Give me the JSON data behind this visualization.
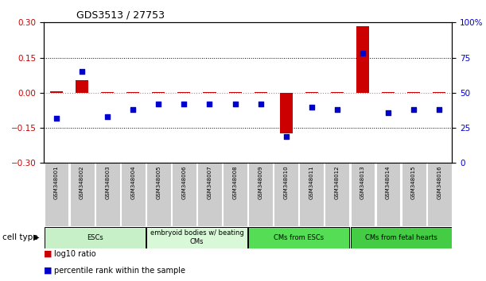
{
  "title": "GDS3513 / 27753",
  "samples": [
    "GSM348001",
    "GSM348002",
    "GSM348003",
    "GSM348004",
    "GSM348005",
    "GSM348006",
    "GSM348007",
    "GSM348008",
    "GSM348009",
    "GSM348010",
    "GSM348011",
    "GSM348012",
    "GSM348013",
    "GSM348014",
    "GSM348015",
    "GSM348016"
  ],
  "log10_ratio": [
    0.005,
    0.055,
    0.003,
    0.003,
    0.002,
    0.003,
    0.003,
    0.003,
    0.003,
    -0.175,
    0.003,
    0.003,
    0.285,
    0.003,
    0.003,
    0.003
  ],
  "percentile_rank": [
    32,
    65,
    33,
    38,
    42,
    42,
    42,
    42,
    42,
    19,
    40,
    38,
    78,
    36,
    38,
    38
  ],
  "cell_type_groups": [
    {
      "label": "ESCs",
      "start": 0,
      "end": 3,
      "color": "#c8f0c8"
    },
    {
      "label": "embryoid bodies w/ beating\nCMs",
      "start": 4,
      "end": 7,
      "color": "#d8f8d8"
    },
    {
      "label": "CMs from ESCs",
      "start": 8,
      "end": 11,
      "color": "#55dd55"
    },
    {
      "label": "CMs from fetal hearts",
      "start": 12,
      "end": 15,
      "color": "#44cc44"
    }
  ],
  "ylim_left": [
    -0.3,
    0.3
  ],
  "ylim_right": [
    0,
    100
  ],
  "yticks_left": [
    -0.3,
    -0.15,
    0,
    0.15,
    0.3
  ],
  "yticks_right": [
    0,
    25,
    50,
    75,
    100
  ],
  "bar_color_red": "#CC0000",
  "bar_color_blue": "#0000CC",
  "dot_color_red": "#FF6666",
  "bg_color_plot": "#ffffff",
  "sample_bg": "#cccccc",
  "cell_type_label": "cell type",
  "bar_width": 0.5
}
